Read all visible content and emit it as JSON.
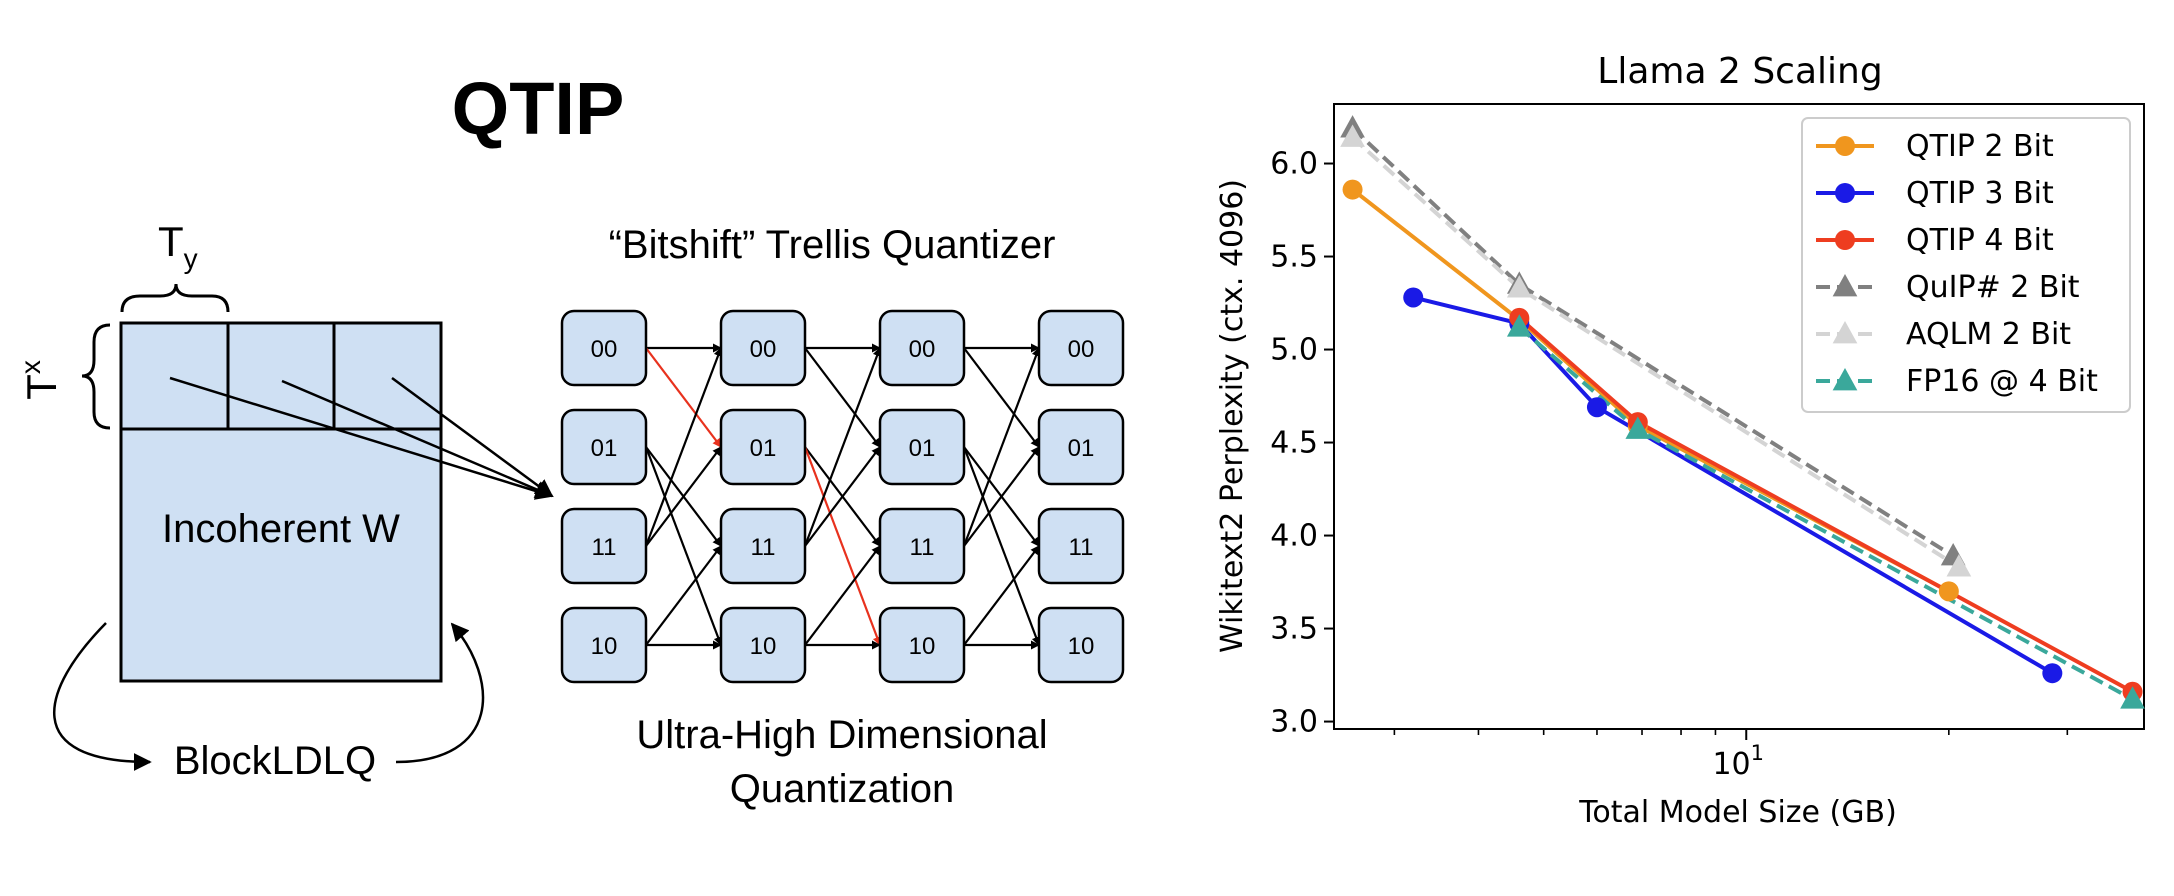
{
  "diagram": {
    "title": "QTIP",
    "tile_label": "T",
    "tile_sub_x": "x",
    "tile_sub_y": "y",
    "matrix_label": "Incoherent W",
    "loop_label": "BlockLDLQ",
    "trellis_title": "“Bitshift” Trellis Quantizer",
    "trellis_states": [
      "00",
      "01",
      "11",
      "10"
    ],
    "caption_line1": "Ultra-High Dimensional",
    "caption_line2": "Quantization",
    "edge_color": "#000000",
    "highlight_color": "#e8321e",
    "node_fill": "#cfe0f3"
  },
  "chart_data": {
    "type": "line",
    "title": "Llama 2 Scaling",
    "xlabel": "Total Model Size (GB)",
    "ylabel": "Wikitext2 Perplexity (ctx. 4096)",
    "xscale": "log",
    "xlim": [
      2.44,
      39.0
    ],
    "ylim": [
      2.96,
      6.32
    ],
    "yticks": [
      3.0,
      3.5,
      4.0,
      4.5,
      5.0,
      5.5,
      6.0
    ],
    "ytick_labels": [
      "3.0",
      "3.5",
      "4.0",
      "4.5",
      "5.0",
      "5.5",
      "6.0"
    ],
    "xtick_major": [
      10
    ],
    "xtick_base": "10",
    "xtick_exp": "1",
    "xtick_minor": [
      3,
      4,
      5,
      6,
      7,
      8,
      9,
      20,
      30
    ],
    "grid": false,
    "legend_position": "top-right",
    "series": [
      {
        "name": "QTIP 2 Bit",
        "color": "#f0961e",
        "dash": "solid",
        "marker": "circle",
        "x": [
          2.6,
          4.6,
          6.9,
          20.0
        ],
        "y": [
          5.86,
          5.16,
          4.59,
          3.7
        ]
      },
      {
        "name": "QTIP 3 Bit",
        "color": "#1a1ae6",
        "dash": "solid",
        "marker": "circle",
        "x": [
          3.2,
          4.6,
          6.0,
          28.5
        ],
        "y": [
          5.28,
          5.14,
          4.69,
          3.26
        ]
      },
      {
        "name": "QTIP 4 Bit",
        "color": "#ee3d20",
        "dash": "solid",
        "marker": "circle",
        "x": [
          4.6,
          6.9,
          37.5
        ],
        "y": [
          5.17,
          4.61,
          3.16
        ]
      },
      {
        "name": "QuIP# 2 Bit",
        "color": "#808080",
        "dash": "dashed",
        "marker": "triangle",
        "x": [
          2.6,
          4.6,
          20.3
        ],
        "y": [
          6.19,
          5.35,
          3.89
        ]
      },
      {
        "name": "AQLM 2 Bit",
        "color": "#d4d4d4",
        "dash": "dashed",
        "marker": "triangle",
        "x": [
          2.6,
          4.6,
          20.7
        ],
        "y": [
          6.14,
          5.33,
          3.83
        ]
      },
      {
        "name": "FP16 @ 4 Bit",
        "color": "#3aa89b",
        "dash": "dashed",
        "marker": "triangle",
        "x": [
          4.6,
          6.9,
          37.5
        ],
        "y": [
          5.12,
          4.57,
          3.12
        ]
      }
    ]
  }
}
